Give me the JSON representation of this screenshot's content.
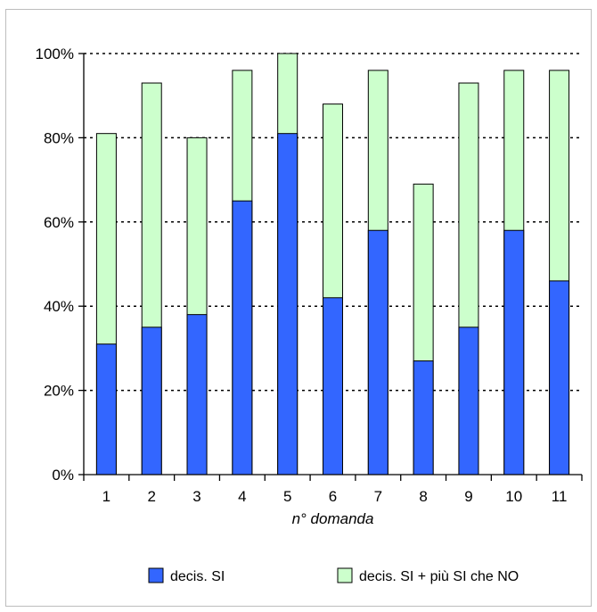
{
  "chart_data": {
    "type": "bar",
    "stacked": false,
    "overlay": true,
    "title": "",
    "xlabel": "n° domanda",
    "ylabel": "",
    "categories": [
      "1",
      "2",
      "3",
      "4",
      "5",
      "6",
      "7",
      "8",
      "9",
      "10",
      "11"
    ],
    "ylim": [
      0,
      100
    ],
    "yticks": [
      "0%",
      "20%",
      "40%",
      "60%",
      "80%",
      "100%"
    ],
    "grid": "horizontal-dotted",
    "legend_position": "bottom",
    "series": [
      {
        "name": "decis. SI",
        "color": "#3366ff",
        "values": [
          31,
          35,
          38,
          65,
          81,
          42,
          58,
          27,
          35,
          58,
          46
        ]
      },
      {
        "name": "decis. SI + più SI che NO",
        "color": "#ccffcc",
        "values": [
          81,
          93,
          80,
          96,
          100,
          88,
          96,
          69,
          93,
          96,
          96
        ]
      }
    ]
  }
}
